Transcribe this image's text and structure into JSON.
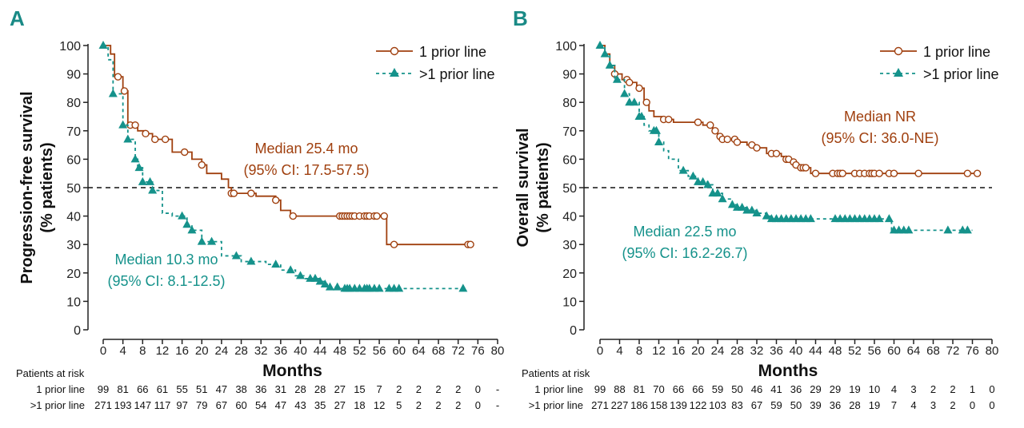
{
  "colors": {
    "one_line": "#a0400f",
    "multi_line": "#15928b",
    "panel_label": "#1a8a86",
    "axis": "#222222"
  },
  "chart_data": [
    {
      "panel": "A",
      "type": "line",
      "ylabel": "Progression-free survival\n(% patients)",
      "ylabel_lines": [
        "Progression-free survival",
        "(% patients)"
      ],
      "xlabel": "Months",
      "xlim": [
        0,
        80
      ],
      "ylim": [
        0,
        100
      ],
      "xticks": [
        0,
        4,
        8,
        12,
        16,
        20,
        24,
        28,
        32,
        36,
        40,
        44,
        48,
        52,
        56,
        60,
        64,
        68,
        72,
        76,
        80
      ],
      "yticks": [
        0,
        10,
        20,
        30,
        40,
        50,
        60,
        70,
        80,
        90,
        100
      ],
      "reference_line": 50,
      "legend": [
        "1 prior line",
        ">1 prior line"
      ],
      "legend_position": "top-right",
      "annotations": [
        {
          "series": "1 prior line",
          "lines": [
            "Median 25.4 mo",
            "(95% CI: 17.5-57.5)"
          ]
        },
        {
          "series": ">1 prior line",
          "lines": [
            "Median 10.3 mo",
            "(95% CI: 8.1-12.5)"
          ]
        }
      ],
      "series": [
        {
          "name": "1 prior line",
          "marker": "circle",
          "steps": [
            [
              0,
              100
            ],
            [
              1.5,
              97
            ],
            [
              2.3,
              89
            ],
            [
              4,
              84
            ],
            [
              5,
              72
            ],
            [
              7,
              70
            ],
            [
              8.5,
              69
            ],
            [
              10,
              67
            ],
            [
              14,
              62.5
            ],
            [
              18,
              60
            ],
            [
              20,
              58
            ],
            [
              21,
              55
            ],
            [
              24,
              53
            ],
            [
              25.4,
              50
            ],
            [
              26,
              48
            ],
            [
              31,
              47
            ],
            [
              35,
              45.6
            ],
            [
              36,
              42
            ],
            [
              38,
              40
            ],
            [
              57.5,
              30
            ],
            [
              74.5,
              30
            ]
          ],
          "censored": [
            3,
            4.3,
            5.5,
            6.5,
            8.6,
            10.5,
            12.6,
            16.5,
            20,
            26,
            26.5,
            30,
            35,
            38.5,
            48,
            48.5,
            49,
            49.5,
            50,
            50.5,
            51,
            52,
            53,
            53.5,
            54,
            55,
            55.5,
            57,
            59,
            74,
            74.5
          ]
        },
        {
          "name": ">1 prior line",
          "marker": "triangle",
          "steps": [
            [
              0,
              100
            ],
            [
              1,
              95
            ],
            [
              2,
              83
            ],
            [
              4,
              72
            ],
            [
              5,
              67
            ],
            [
              6.5,
              60
            ],
            [
              7,
              57
            ],
            [
              8,
              52
            ],
            [
              10,
              49
            ],
            [
              12,
              41
            ],
            [
              14,
              40
            ],
            [
              17,
              37
            ],
            [
              18,
              35
            ],
            [
              20,
              31
            ],
            [
              24,
              26
            ],
            [
              28,
              24
            ],
            [
              33,
              23
            ],
            [
              36,
              21
            ],
            [
              39,
              19
            ],
            [
              41,
              18
            ],
            [
              44,
              17
            ],
            [
              45,
              16
            ],
            [
              46,
              15
            ],
            [
              48,
              14.5
            ],
            [
              73,
              14.5
            ]
          ],
          "censored": [
            0,
            2,
            4,
            5,
            6.5,
            7.3,
            8,
            9.5,
            10,
            16,
            17,
            18,
            20,
            22,
            27,
            30,
            35,
            38,
            40,
            42,
            43,
            44,
            45,
            46,
            47.5,
            49,
            49.5,
            50,
            51,
            52,
            53,
            53.5,
            54,
            55,
            56,
            58,
            59,
            60,
            73
          ]
        }
      ],
      "risk_table": {
        "title": "Patients at risk",
        "rows": [
          {
            "label": "1 prior line",
            "values": [
              "99",
              "81",
              "66",
              "61",
              "55",
              "51",
              "47",
              "38",
              "36",
              "31",
              "28",
              "28",
              "27",
              "15",
              "7",
              "2",
              "2",
              "2",
              "2",
              "0",
              "-"
            ]
          },
          {
            "label": ">1 prior line",
            "values": [
              "271",
              "193",
              "147",
              "117",
              "97",
              "79",
              "67",
              "60",
              "54",
              "47",
              "43",
              "35",
              "27",
              "18",
              "12",
              "5",
              "2",
              "2",
              "2",
              "0",
              "-"
            ]
          }
        ]
      }
    },
    {
      "panel": "B",
      "type": "line",
      "ylabel_lines": [
        "Overall survival",
        "(% patients)"
      ],
      "xlabel": "Months",
      "xlim": [
        0,
        80
      ],
      "ylim": [
        0,
        100
      ],
      "xticks": [
        0,
        4,
        8,
        12,
        16,
        20,
        24,
        28,
        32,
        36,
        40,
        44,
        48,
        52,
        56,
        60,
        64,
        68,
        72,
        76,
        80
      ],
      "yticks": [
        0,
        10,
        20,
        30,
        40,
        50,
        60,
        70,
        80,
        90,
        100
      ],
      "reference_line": 50,
      "legend": [
        "1 prior line",
        ">1 prior line"
      ],
      "legend_position": "top-right",
      "annotations": [
        {
          "series": "1 prior line",
          "lines": [
            "Median NR",
            "(95% CI: 36.0-NE)"
          ]
        },
        {
          "series": ">1 prior line",
          "lines": [
            "Median 22.5 mo",
            "(95% CI: 16.2-26.7)"
          ]
        }
      ],
      "series": [
        {
          "name": "1 prior line",
          "marker": "circle",
          "steps": [
            [
              0,
              100
            ],
            [
              1,
              97
            ],
            [
              2,
              93
            ],
            [
              3,
              90
            ],
            [
              4.5,
              88
            ],
            [
              6,
              87
            ],
            [
              7.5,
              85
            ],
            [
              9,
              80
            ],
            [
              10,
              77
            ],
            [
              11,
              75
            ],
            [
              13,
              74
            ],
            [
              15,
              73
            ],
            [
              21,
              72
            ],
            [
              23,
              70
            ],
            [
              24,
              68
            ],
            [
              25,
              67
            ],
            [
              28,
              66
            ],
            [
              30,
              65
            ],
            [
              32,
              64
            ],
            [
              34,
              62
            ],
            [
              37,
              61
            ],
            [
              38,
              60
            ],
            [
              39,
              59
            ],
            [
              40,
              58
            ],
            [
              41,
              57
            ],
            [
              43,
              55
            ],
            [
              77,
              55
            ]
          ],
          "censored": [
            3,
            5.5,
            6,
            8,
            9.5,
            13,
            14,
            20,
            22.5,
            23.5,
            24.5,
            25,
            26,
            27.5,
            28,
            31,
            32,
            35,
            36,
            38,
            38.5,
            39.5,
            40,
            41,
            41.5,
            42,
            44,
            47.5,
            48.5,
            49,
            49.5,
            52,
            53,
            54,
            55,
            55.5,
            56,
            57,
            59,
            60,
            65,
            75,
            77
          ]
        },
        {
          "name": ">1 prior line",
          "marker": "triangle",
          "steps": [
            [
              0,
              100
            ],
            [
              1,
              97
            ],
            [
              2,
              93
            ],
            [
              3,
              88
            ],
            [
              5,
              83
            ],
            [
              6,
              80
            ],
            [
              8,
              75
            ],
            [
              9,
              72
            ],
            [
              10,
              70
            ],
            [
              12,
              66
            ],
            [
              13,
              63
            ],
            [
              14,
              60
            ],
            [
              16,
              56
            ],
            [
              18,
              54
            ],
            [
              20,
              52
            ],
            [
              22,
              51
            ],
            [
              23,
              48
            ],
            [
              25,
              46
            ],
            [
              27,
              44
            ],
            [
              28,
              43
            ],
            [
              30,
              42
            ],
            [
              32,
              41
            ],
            [
              34,
              40
            ],
            [
              35,
              39
            ],
            [
              59.5,
              35
            ],
            [
              76,
              35
            ]
          ],
          "censored": [
            0,
            1,
            2,
            3.5,
            5,
            6,
            7,
            8,
            8.5,
            11,
            11.5,
            12,
            17,
            19,
            20,
            21,
            22,
            23,
            24,
            25,
            27,
            28,
            29,
            30,
            31,
            32,
            34,
            35,
            36,
            37,
            38,
            39,
            40,
            41,
            42,
            43,
            48,
            49,
            50,
            51,
            52,
            53,
            54,
            55,
            56,
            57,
            59,
            60,
            61,
            62,
            63,
            71,
            74,
            75
          ]
        }
      ],
      "risk_table": {
        "title": "Patients at risk",
        "rows": [
          {
            "label": "1 prior line",
            "values": [
              "99",
              "88",
              "81",
              "70",
              "66",
              "66",
              "59",
              "50",
              "46",
              "41",
              "36",
              "29",
              "29",
              "19",
              "10",
              "4",
              "3",
              "2",
              "2",
              "1",
              "0"
            ]
          },
          {
            "label": ">1 prior line",
            "values": [
              "271",
              "227",
              "186",
              "158",
              "139",
              "122",
              "103",
              "83",
              "67",
              "59",
              "50",
              "39",
              "36",
              "28",
              "19",
              "7",
              "4",
              "3",
              "2",
              "0",
              "0"
            ]
          }
        ]
      }
    }
  ]
}
